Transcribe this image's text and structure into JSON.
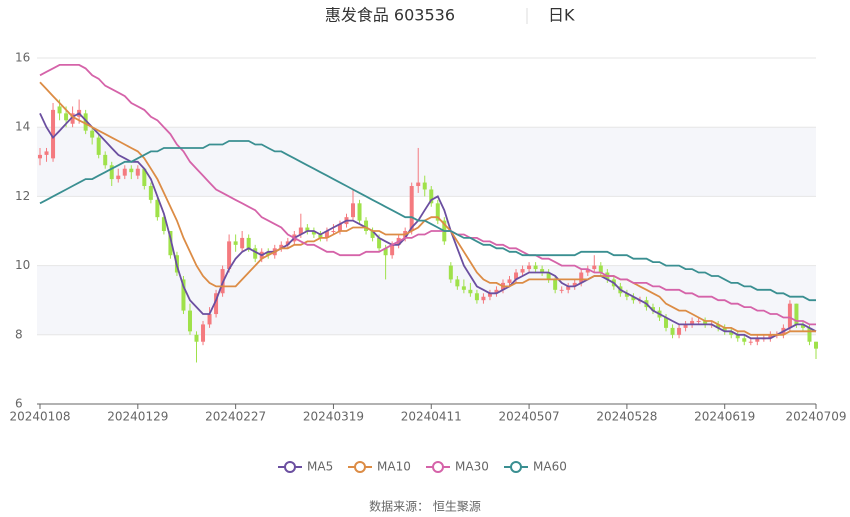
{
  "chart_data": {
    "type": "candlestick",
    "title": "惠发食品 603536",
    "subtitle": "日K",
    "source": "数据来源： 恒生聚源",
    "categories": [
      "20240108",
      null,
      null,
      null,
      null,
      null,
      null,
      null,
      null,
      null,
      null,
      null,
      null,
      null,
      null,
      "20240129",
      null,
      null,
      null,
      null,
      null,
      null,
      null,
      null,
      null,
      null,
      null,
      null,
      null,
      null,
      "20240227",
      null,
      null,
      null,
      null,
      null,
      null,
      null,
      null,
      null,
      null,
      null,
      null,
      null,
      null,
      "20240319",
      null,
      null,
      null,
      null,
      null,
      null,
      null,
      null,
      null,
      null,
      null,
      null,
      null,
      null,
      "20240411",
      null,
      null,
      null,
      null,
      null,
      null,
      null,
      null,
      null,
      null,
      null,
      null,
      null,
      null,
      "20240507",
      null,
      null,
      null,
      null,
      null,
      null,
      null,
      null,
      null,
      null,
      null,
      null,
      null,
      null,
      "20240528",
      null,
      null,
      null,
      null,
      null,
      null,
      null,
      null,
      null,
      null,
      null,
      null,
      null,
      null,
      "20240619",
      null,
      null,
      null,
      null,
      null,
      null,
      null,
      null,
      null,
      null,
      null,
      null,
      null,
      "20240709"
    ],
    "up_color": "#f47a7f",
    "down_color": "#9fe14a",
    "candles": [
      [
        13.1,
        13.4,
        12.9,
        13.2
      ],
      [
        13.2,
        13.4,
        13.0,
        13.3
      ],
      [
        13.1,
        14.7,
        13.0,
        14.5
      ],
      [
        14.6,
        14.8,
        14.2,
        14.4
      ],
      [
        14.4,
        14.6,
        14.0,
        14.2
      ],
      [
        14.1,
        14.6,
        14.0,
        14.4
      ],
      [
        14.3,
        14.8,
        14.1,
        14.5
      ],
      [
        14.4,
        14.5,
        13.8,
        13.9
      ],
      [
        13.9,
        14.0,
        13.5,
        13.7
      ],
      [
        13.7,
        13.8,
        13.1,
        13.2
      ],
      [
        13.2,
        13.3,
        12.8,
        12.9
      ],
      [
        12.9,
        13.0,
        12.3,
        12.5
      ],
      [
        12.5,
        12.8,
        12.4,
        12.6
      ],
      [
        12.6,
        12.9,
        12.5,
        12.8
      ],
      [
        12.8,
        12.9,
        12.5,
        12.7
      ],
      [
        12.6,
        12.9,
        12.5,
        12.8
      ],
      [
        12.8,
        12.8,
        12.2,
        12.3
      ],
      [
        12.3,
        12.4,
        11.8,
        11.9
      ],
      [
        11.9,
        12.0,
        11.3,
        11.4
      ],
      [
        11.4,
        11.5,
        10.9,
        11.0
      ],
      [
        11.0,
        11.0,
        10.2,
        10.3
      ],
      [
        10.3,
        10.4,
        9.7,
        9.8
      ],
      [
        9.6,
        9.7,
        8.6,
        8.7
      ],
      [
        8.7,
        8.9,
        8.0,
        8.1
      ],
      [
        8.0,
        8.1,
        7.2,
        7.8
      ],
      [
        7.8,
        8.4,
        7.7,
        8.3
      ],
      [
        8.3,
        8.8,
        8.2,
        8.6
      ],
      [
        8.6,
        9.3,
        8.5,
        9.2
      ],
      [
        9.2,
        10.0,
        9.1,
        9.9
      ],
      [
        9.9,
        10.9,
        9.8,
        10.7
      ],
      [
        10.7,
        10.9,
        10.4,
        10.6
      ],
      [
        10.5,
        11.0,
        10.4,
        10.8
      ],
      [
        10.8,
        10.9,
        10.4,
        10.5
      ],
      [
        10.5,
        10.6,
        10.1,
        10.2
      ],
      [
        10.2,
        10.5,
        10.1,
        10.4
      ],
      [
        10.4,
        10.5,
        10.2,
        10.3
      ],
      [
        10.3,
        10.6,
        10.2,
        10.5
      ],
      [
        10.5,
        10.7,
        10.4,
        10.6
      ],
      [
        10.6,
        10.8,
        10.5,
        10.7
      ],
      [
        10.7,
        11.0,
        10.6,
        10.9
      ],
      [
        10.9,
        11.5,
        10.8,
        11.1
      ],
      [
        11.1,
        11.2,
        10.9,
        11.0
      ],
      [
        11.0,
        11.1,
        10.8,
        10.9
      ],
      [
        10.9,
        11.0,
        10.7,
        10.8
      ],
      [
        10.8,
        11.1,
        10.7,
        11.0
      ],
      [
        11.0,
        11.2,
        10.9,
        11.0
      ],
      [
        11.0,
        11.3,
        10.9,
        11.2
      ],
      [
        11.2,
        11.5,
        11.1,
        11.4
      ],
      [
        11.4,
        12.2,
        11.3,
        11.8
      ],
      [
        11.8,
        11.9,
        11.2,
        11.3
      ],
      [
        11.3,
        11.4,
        10.9,
        11.0
      ],
      [
        11.0,
        11.1,
        10.7,
        10.8
      ],
      [
        10.8,
        10.9,
        10.4,
        10.5
      ],
      [
        10.5,
        10.6,
        9.6,
        10.3
      ],
      [
        10.3,
        10.7,
        10.2,
        10.6
      ],
      [
        10.6,
        10.9,
        10.5,
        10.8
      ],
      [
        10.8,
        11.1,
        10.7,
        11.0
      ],
      [
        11.0,
        12.4,
        10.9,
        12.3
      ],
      [
        12.3,
        13.4,
        12.1,
        12.4
      ],
      [
        12.4,
        12.6,
        12.0,
        12.2
      ],
      [
        12.2,
        12.3,
        11.7,
        11.8
      ],
      [
        11.8,
        11.9,
        11.2,
        11.3
      ],
      [
        11.3,
        11.4,
        10.6,
        10.7
      ],
      [
        10.0,
        10.1,
        9.5,
        9.6
      ],
      [
        9.6,
        9.7,
        9.3,
        9.4
      ],
      [
        9.4,
        9.6,
        9.2,
        9.3
      ],
      [
        9.3,
        9.5,
        9.1,
        9.2
      ],
      [
        9.2,
        9.3,
        8.9,
        9.0
      ],
      [
        9.0,
        9.2,
        8.9,
        9.1
      ],
      [
        9.1,
        9.3,
        9.0,
        9.2
      ],
      [
        9.2,
        9.4,
        9.1,
        9.3
      ],
      [
        9.3,
        9.6,
        9.2,
        9.5
      ],
      [
        9.5,
        9.7,
        9.4,
        9.6
      ],
      [
        9.6,
        9.9,
        9.5,
        9.8
      ],
      [
        9.8,
        10.0,
        9.7,
        9.9
      ],
      [
        9.9,
        10.1,
        9.8,
        10.0
      ],
      [
        10.0,
        10.1,
        9.8,
        9.9
      ],
      [
        9.9,
        10.0,
        9.7,
        9.8
      ],
      [
        9.8,
        9.9,
        9.5,
        9.6
      ],
      [
        9.6,
        9.7,
        9.2,
        9.3
      ],
      [
        9.3,
        9.4,
        9.2,
        9.3
      ],
      [
        9.3,
        9.5,
        9.2,
        9.4
      ],
      [
        9.4,
        9.6,
        9.3,
        9.5
      ],
      [
        9.5,
        9.9,
        9.4,
        9.8
      ],
      [
        9.8,
        10.0,
        9.7,
        9.9
      ],
      [
        9.9,
        10.3,
        9.8,
        10.0
      ],
      [
        10.0,
        10.1,
        9.7,
        9.8
      ],
      [
        9.8,
        9.9,
        9.5,
        9.6
      ],
      [
        9.6,
        9.7,
        9.3,
        9.4
      ],
      [
        9.4,
        9.5,
        9.1,
        9.2
      ],
      [
        9.2,
        9.3,
        9.0,
        9.1
      ],
      [
        9.1,
        9.2,
        8.9,
        9.0
      ],
      [
        9.0,
        9.1,
        8.9,
        9.0
      ],
      [
        9.0,
        9.1,
        8.7,
        8.8
      ],
      [
        8.8,
        8.9,
        8.6,
        8.7
      ],
      [
        8.7,
        8.8,
        8.4,
        8.5
      ],
      [
        8.5,
        8.6,
        8.1,
        8.2
      ],
      [
        8.2,
        8.3,
        7.9,
        8.0
      ],
      [
        8.0,
        8.3,
        7.9,
        8.2
      ],
      [
        8.2,
        8.4,
        8.1,
        8.3
      ],
      [
        8.3,
        8.5,
        8.2,
        8.4
      ],
      [
        8.4,
        8.5,
        8.3,
        8.4
      ],
      [
        8.4,
        8.5,
        8.2,
        8.3
      ],
      [
        8.3,
        8.4,
        8.2,
        8.3
      ],
      [
        8.3,
        8.4,
        8.1,
        8.2
      ],
      [
        8.2,
        8.3,
        8.0,
        8.1
      ],
      [
        8.1,
        8.2,
        7.9,
        8.0
      ],
      [
        8.0,
        8.1,
        7.8,
        7.9
      ],
      [
        7.9,
        8.0,
        7.7,
        7.8
      ],
      [
        7.8,
        7.9,
        7.7,
        7.8
      ],
      [
        7.8,
        8.0,
        7.7,
        7.9
      ],
      [
        7.9,
        8.0,
        7.8,
        7.9
      ],
      [
        7.9,
        8.1,
        7.8,
        8.0
      ],
      [
        8.0,
        8.1,
        7.9,
        8.0
      ],
      [
        8.0,
        8.3,
        7.9,
        8.2
      ],
      [
        8.2,
        9.0,
        8.1,
        8.9
      ],
      [
        8.9,
        8.9,
        8.2,
        8.3
      ],
      [
        8.3,
        8.4,
        8.1,
        8.2
      ],
      [
        8.2,
        8.3,
        7.7,
        7.8
      ],
      [
        7.8,
        7.8,
        7.3,
        7.6
      ]
    ],
    "series": [
      {
        "name": "MA5",
        "color": "#6b4fa0",
        "values": [
          14.4,
          14.0,
          13.7,
          13.9,
          14.1,
          14.3,
          14.4,
          14.2,
          14.0,
          13.8,
          13.6,
          13.4,
          13.2,
          13.1,
          13.0,
          13.0,
          12.8,
          12.5,
          12.0,
          11.5,
          10.8,
          10.0,
          9.4,
          9.0,
          8.8,
          8.6,
          8.6,
          9.0,
          9.5,
          9.9,
          10.2,
          10.4,
          10.5,
          10.4,
          10.3,
          10.4,
          10.4,
          10.5,
          10.6,
          10.8,
          10.9,
          11.0,
          11.0,
          10.9,
          11.0,
          11.1,
          11.2,
          11.3,
          11.3,
          11.2,
          11.1,
          11.0,
          10.8,
          10.7,
          10.6,
          10.6,
          10.8,
          11.1,
          11.3,
          11.6,
          11.9,
          12.0,
          11.6,
          11.0,
          10.5,
          10.0,
          9.7,
          9.4,
          9.3,
          9.2,
          9.2,
          9.3,
          9.4,
          9.6,
          9.7,
          9.8,
          9.8,
          9.8,
          9.8,
          9.7,
          9.5,
          9.4,
          9.4,
          9.5,
          9.6,
          9.7,
          9.7,
          9.6,
          9.5,
          9.3,
          9.2,
          9.1,
          9.0,
          8.9,
          8.7,
          8.6,
          8.5,
          8.4,
          8.3,
          8.3,
          8.3,
          8.3,
          8.3,
          8.3,
          8.2,
          8.1,
          8.1,
          8.0,
          8.0,
          7.9,
          7.9,
          7.9,
          7.9,
          8.0,
          8.1,
          8.2,
          8.3,
          8.3,
          8.2,
          8.1
        ]
      },
      {
        "name": "MA10",
        "color": "#dc8c45",
        "values": [
          15.3,
          15.1,
          14.9,
          14.7,
          14.5,
          14.3,
          14.2,
          14.1,
          14.0,
          13.9,
          13.8,
          13.7,
          13.6,
          13.5,
          13.4,
          13.3,
          13.1,
          12.8,
          12.5,
          12.1,
          11.7,
          11.3,
          10.8,
          10.4,
          10.0,
          9.7,
          9.5,
          9.4,
          9.4,
          9.4,
          9.4,
          9.6,
          9.8,
          10.0,
          10.2,
          10.3,
          10.4,
          10.5,
          10.5,
          10.6,
          10.6,
          10.7,
          10.7,
          10.8,
          10.8,
          10.9,
          11.0,
          11.0,
          11.1,
          11.1,
          11.1,
          11.0,
          11.0,
          10.9,
          10.9,
          10.9,
          10.9,
          11.0,
          11.1,
          11.3,
          11.4,
          11.4,
          11.2,
          11.0,
          10.7,
          10.4,
          10.1,
          9.8,
          9.6,
          9.5,
          9.5,
          9.4,
          9.4,
          9.5,
          9.5,
          9.6,
          9.6,
          9.6,
          9.6,
          9.6,
          9.6,
          9.6,
          9.6,
          9.6,
          9.6,
          9.7,
          9.7,
          9.7,
          9.7,
          9.6,
          9.6,
          9.5,
          9.4,
          9.3,
          9.2,
          9.1,
          8.9,
          8.8,
          8.7,
          8.7,
          8.6,
          8.5,
          8.4,
          8.4,
          8.3,
          8.2,
          8.2,
          8.1,
          8.1,
          8.0,
          8.0,
          8.0,
          8.0,
          8.0,
          8.0,
          8.1,
          8.1,
          8.1,
          8.1,
          8.1
        ]
      },
      {
        "name": "MA30",
        "color": "#d563a9",
        "values": [
          15.5,
          15.6,
          15.7,
          15.8,
          15.8,
          15.8,
          15.8,
          15.7,
          15.5,
          15.4,
          15.2,
          15.1,
          15.0,
          14.9,
          14.7,
          14.6,
          14.5,
          14.3,
          14.2,
          14.0,
          13.8,
          13.5,
          13.3,
          13.0,
          12.8,
          12.6,
          12.4,
          12.2,
          12.1,
          12.0,
          11.9,
          11.8,
          11.7,
          11.6,
          11.4,
          11.3,
          11.2,
          11.1,
          10.9,
          10.8,
          10.7,
          10.6,
          10.6,
          10.5,
          10.4,
          10.4,
          10.3,
          10.3,
          10.3,
          10.3,
          10.4,
          10.4,
          10.4,
          10.5,
          10.6,
          10.7,
          10.8,
          10.8,
          10.9,
          10.9,
          11.0,
          11.0,
          11.0,
          11.0,
          10.9,
          10.9,
          10.8,
          10.8,
          10.7,
          10.7,
          10.6,
          10.6,
          10.5,
          10.5,
          10.4,
          10.3,
          10.3,
          10.2,
          10.2,
          10.1,
          10.0,
          10.0,
          10.0,
          9.9,
          9.9,
          9.8,
          9.8,
          9.7,
          9.7,
          9.6,
          9.6,
          9.5,
          9.5,
          9.5,
          9.4,
          9.4,
          9.3,
          9.3,
          9.3,
          9.2,
          9.2,
          9.1,
          9.1,
          9.1,
          9.0,
          9.0,
          8.9,
          8.9,
          8.8,
          8.8,
          8.7,
          8.7,
          8.6,
          8.6,
          8.5,
          8.5,
          8.4,
          8.4,
          8.3,
          8.3
        ]
      },
      {
        "name": "MA60",
        "color": "#3a8f91",
        "values": [
          11.8,
          11.9,
          12.0,
          12.1,
          12.2,
          12.3,
          12.4,
          12.5,
          12.5,
          12.6,
          12.7,
          12.8,
          12.9,
          13.0,
          13.0,
          13.1,
          13.2,
          13.3,
          13.3,
          13.4,
          13.4,
          13.4,
          13.4,
          13.4,
          13.4,
          13.4,
          13.5,
          13.5,
          13.5,
          13.6,
          13.6,
          13.6,
          13.6,
          13.5,
          13.5,
          13.4,
          13.3,
          13.3,
          13.2,
          13.1,
          13.0,
          12.9,
          12.8,
          12.7,
          12.6,
          12.5,
          12.4,
          12.3,
          12.2,
          12.1,
          12.0,
          11.9,
          11.8,
          11.7,
          11.6,
          11.5,
          11.4,
          11.4,
          11.3,
          11.3,
          11.2,
          11.1,
          11.0,
          11.0,
          10.9,
          10.8,
          10.8,
          10.7,
          10.6,
          10.6,
          10.5,
          10.5,
          10.4,
          10.4,
          10.3,
          10.3,
          10.3,
          10.3,
          10.3,
          10.3,
          10.3,
          10.3,
          10.3,
          10.4,
          10.4,
          10.4,
          10.4,
          10.4,
          10.3,
          10.3,
          10.3,
          10.2,
          10.2,
          10.2,
          10.1,
          10.1,
          10.0,
          10.0,
          10.0,
          9.9,
          9.9,
          9.8,
          9.8,
          9.7,
          9.7,
          9.6,
          9.5,
          9.5,
          9.4,
          9.4,
          9.3,
          9.3,
          9.3,
          9.2,
          9.2,
          9.1,
          9.1,
          9.1,
          9.0,
          9.0
        ]
      }
    ],
    "ylim": [
      6,
      16
    ],
    "yticks": [
      6,
      8,
      10,
      12,
      14,
      16
    ],
    "grid": true,
    "legend": "bottom"
  }
}
